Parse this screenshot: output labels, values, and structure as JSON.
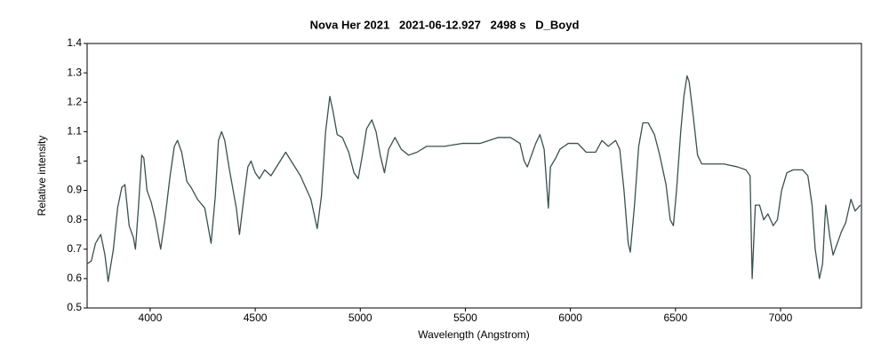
{
  "chart_data": {
    "type": "line",
    "title": "Nova Her 2021   2021-06-12.927   2498 s   D_Boyd",
    "xlabel": "Wavelength (Angstrom)",
    "ylabel": "Relative intensity",
    "color": "#3b5050",
    "xlim": [
      3700,
      7385
    ],
    "ylim": [
      0.5,
      1.4
    ],
    "xticks": [
      4000,
      4500,
      5000,
      5500,
      6000,
      6500,
      7000
    ],
    "yticks": [
      0.5,
      0.6,
      0.7,
      0.8,
      0.9,
      1,
      1.1,
      1.2,
      1.3,
      1.4
    ],
    "grid": false,
    "x": [
      3700,
      3720,
      3740,
      3765,
      3785,
      3800,
      3825,
      3845,
      3865,
      3880,
      3900,
      3920,
      3930,
      3945,
      3960,
      3970,
      3985,
      4005,
      4025,
      4050,
      4070,
      4095,
      4115,
      4130,
      4150,
      4175,
      4195,
      4225,
      4260,
      4290,
      4310,
      4325,
      4340,
      4355,
      4375,
      4395,
      4410,
      4425,
      4445,
      4465,
      4480,
      4500,
      4520,
      4545,
      4575,
      4610,
      4645,
      4680,
      4715,
      4740,
      4765,
      4795,
      4815,
      4835,
      4855,
      4870,
      4890,
      4915,
      4945,
      4970,
      4990,
      5010,
      5030,
      5055,
      5075,
      5095,
      5115,
      5135,
      5165,
      5195,
      5230,
      5270,
      5315,
      5400,
      5485,
      5570,
      5655,
      5715,
      5760,
      5780,
      5795,
      5815,
      5835,
      5855,
      5875,
      5885,
      5895,
      5905,
      5930,
      5950,
      5990,
      6035,
      6075,
      6120,
      6150,
      6180,
      6215,
      6235,
      6255,
      6275,
      6285,
      6305,
      6325,
      6345,
      6370,
      6400,
      6425,
      6455,
      6475,
      6490,
      6505,
      6525,
      6540,
      6555,
      6565,
      6585,
      6605,
      6625,
      6670,
      6730,
      6795,
      6835,
      6855,
      6865,
      6880,
      6900,
      6920,
      6940,
      6965,
      6985,
      7005,
      7030,
      7060,
      7105,
      7130,
      7150,
      7165,
      7185,
      7200,
      7215,
      7235,
      7250,
      7270,
      7290,
      7310,
      7335,
      7355,
      7380
    ],
    "values": [
      0.65,
      0.66,
      0.72,
      0.75,
      0.68,
      0.59,
      0.7,
      0.84,
      0.91,
      0.92,
      0.78,
      0.74,
      0.7,
      0.85,
      1.02,
      1.01,
      0.9,
      0.86,
      0.8,
      0.7,
      0.8,
      0.95,
      1.05,
      1.07,
      1.03,
      0.93,
      0.91,
      0.87,
      0.84,
      0.72,
      0.88,
      1.07,
      1.1,
      1.07,
      0.98,
      0.9,
      0.84,
      0.75,
      0.87,
      0.98,
      1.0,
      0.96,
      0.94,
      0.97,
      0.95,
      0.99,
      1.03,
      0.99,
      0.95,
      0.91,
      0.87,
      0.77,
      0.88,
      1.1,
      1.22,
      1.17,
      1.09,
      1.08,
      1.03,
      0.96,
      0.94,
      1.02,
      1.11,
      1.14,
      1.1,
      1.02,
      0.96,
      1.04,
      1.08,
      1.04,
      1.02,
      1.03,
      1.05,
      1.05,
      1.06,
      1.06,
      1.08,
      1.08,
      1.06,
      1.0,
      0.98,
      1.02,
      1.06,
      1.09,
      1.04,
      0.94,
      0.84,
      0.98,
      1.01,
      1.04,
      1.06,
      1.06,
      1.03,
      1.03,
      1.07,
      1.05,
      1.07,
      1.04,
      0.9,
      0.72,
      0.69,
      0.85,
      1.05,
      1.13,
      1.13,
      1.09,
      1.02,
      0.92,
      0.8,
      0.78,
      0.9,
      1.1,
      1.22,
      1.29,
      1.27,
      1.15,
      1.02,
      0.99,
      0.99,
      0.99,
      0.98,
      0.97,
      0.95,
      0.6,
      0.85,
      0.85,
      0.8,
      0.82,
      0.78,
      0.8,
      0.9,
      0.96,
      0.97,
      0.97,
      0.95,
      0.85,
      0.7,
      0.6,
      0.65,
      0.85,
      0.74,
      0.68,
      0.72,
      0.76,
      0.79,
      0.87,
      0.83,
      0.85
    ]
  }
}
